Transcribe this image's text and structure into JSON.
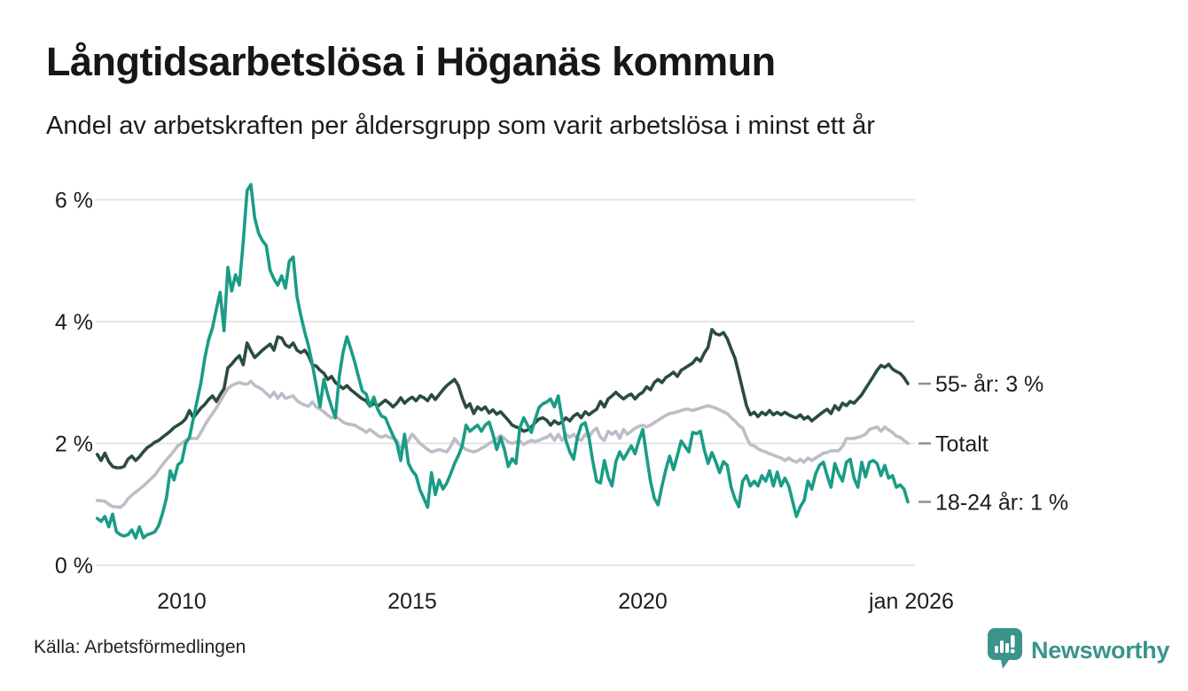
{
  "header": {
    "title": "Långtidsarbetslösa i Höganäs kommun",
    "subtitle": "Andel av arbetskraften per åldersgrupp som varit arbetslösa i minst ett år"
  },
  "footer": {
    "source": "Källa: Arbetsförmedlingen",
    "brand": {
      "name": "Newsworthy",
      "color": "#3a948c",
      "icon": "newsworthy-badge-icon"
    }
  },
  "colors": {
    "grid": "#e4e4e7",
    "axis_text": "#1c1c1c",
    "end_label_text": "#1c1c1c",
    "end_tick": "#8f8f96",
    "background": "#ffffff"
  },
  "chart_data": {
    "type": "line",
    "title": "Långtidsarbetslösa i Höganäs kommun",
    "subtitle": "Andel av arbetskraften per åldersgrupp som varit arbetslösa i minst ett år",
    "x_start": "2008-03",
    "x_end": "2025-10",
    "x_interval": "monthly",
    "x_axis_end_label_value": 2026.04,
    "x_tick_labels": [
      "2010",
      "2015",
      "2020",
      "jan 2026"
    ],
    "x_tick_values": [
      2010,
      2015,
      2020,
      2026.0
    ],
    "y_unit": "%",
    "y_tick_labels": [
      "0 %",
      "2 %",
      "4 %",
      "6 %"
    ],
    "y_tick_values": [
      0,
      2,
      4,
      6
    ],
    "ylim": [
      0,
      6.5
    ],
    "grid": "horizontal",
    "legend_position": "end-of-line-labels-right",
    "series": [
      {
        "id": "totalt",
        "name": "Totalt",
        "end_label": "Totalt",
        "color": "#bdbdc8",
        "values": [
          1.06,
          1.06,
          1.05,
          1.0,
          0.96,
          0.96,
          0.95,
          1.0,
          1.09,
          1.15,
          1.2,
          1.25,
          1.3,
          1.36,
          1.42,
          1.48,
          1.57,
          1.65,
          1.73,
          1.8,
          1.88,
          1.96,
          2.0,
          2.05,
          2.08,
          2.08,
          2.08,
          2.18,
          2.3,
          2.4,
          2.49,
          2.58,
          2.69,
          2.8,
          2.9,
          2.95,
          2.98,
          3.0,
          2.98,
          2.97,
          3.02,
          2.95,
          2.92,
          2.88,
          2.82,
          2.76,
          2.84,
          2.74,
          2.82,
          2.74,
          2.76,
          2.78,
          2.7,
          2.66,
          2.63,
          2.61,
          2.68,
          2.6,
          2.56,
          2.52,
          2.46,
          2.42,
          2.44,
          2.4,
          2.35,
          2.32,
          2.31,
          2.3,
          2.26,
          2.23,
          2.18,
          2.23,
          2.18,
          2.13,
          2.1,
          2.13,
          2.1,
          2.08,
          2.05,
          1.9,
          1.95,
          2.05,
          2.15,
          2.08,
          2.0,
          1.95,
          1.9,
          1.86,
          1.88,
          1.9,
          1.88,
          1.86,
          1.95,
          2.08,
          2.0,
          1.95,
          1.9,
          1.88,
          1.86,
          1.88,
          1.92,
          1.95,
          2.0,
          2.03,
          2.08,
          2.13,
          2.08,
          2.02,
          2.0,
          2.02,
          2.04,
          1.98,
          2.02,
          2.05,
          2.03,
          2.05,
          2.08,
          2.1,
          2.15,
          2.05,
          2.15,
          2.05,
          2.15,
          2.1,
          2.15,
          2.08,
          2.05,
          2.15,
          2.1,
          2.2,
          2.25,
          2.1,
          2.05,
          2.2,
          2.15,
          2.2,
          2.08,
          2.23,
          2.15,
          2.2,
          2.25,
          2.28,
          2.3,
          2.27,
          2.3,
          2.34,
          2.38,
          2.42,
          2.46,
          2.49,
          2.5,
          2.52,
          2.54,
          2.56,
          2.56,
          2.54,
          2.56,
          2.58,
          2.6,
          2.62,
          2.6,
          2.58,
          2.55,
          2.52,
          2.49,
          2.42,
          2.37,
          2.3,
          2.25,
          2.1,
          1.98,
          1.96,
          1.91,
          1.88,
          1.86,
          1.83,
          1.81,
          1.78,
          1.76,
          1.72,
          1.76,
          1.72,
          1.69,
          1.74,
          1.69,
          1.76,
          1.72,
          1.76,
          1.8,
          1.84,
          1.85,
          1.88,
          1.88,
          1.88,
          1.95,
          2.08,
          2.08,
          2.08,
          2.1,
          2.12,
          2.15,
          2.23,
          2.25,
          2.27,
          2.2,
          2.27,
          2.22,
          2.18,
          2.12,
          2.1,
          2.05,
          2.0
        ]
      },
      {
        "id": "55-ar",
        "name": "55- år",
        "end_label": "55- år: 3 %",
        "end_value_pct": 3,
        "color": "#2a4c3e",
        "values": [
          1.82,
          1.72,
          1.84,
          1.7,
          1.62,
          1.6,
          1.6,
          1.62,
          1.74,
          1.79,
          1.72,
          1.78,
          1.86,
          1.93,
          1.97,
          2.02,
          2.05,
          2.1,
          2.15,
          2.2,
          2.26,
          2.3,
          2.34,
          2.4,
          2.54,
          2.42,
          2.5,
          2.58,
          2.64,
          2.72,
          2.78,
          2.69,
          2.8,
          2.9,
          3.24,
          3.3,
          3.38,
          3.44,
          3.29,
          3.65,
          3.52,
          3.41,
          3.47,
          3.53,
          3.58,
          3.63,
          3.53,
          3.75,
          3.73,
          3.62,
          3.58,
          3.65,
          3.53,
          3.49,
          3.53,
          3.44,
          3.29,
          3.27,
          3.2,
          3.15,
          3.05,
          3.1,
          3.0,
          2.95,
          2.9,
          2.95,
          2.88,
          2.83,
          2.78,
          2.73,
          2.7,
          2.61,
          2.66,
          2.61,
          2.66,
          2.71,
          2.66,
          2.6,
          2.66,
          2.75,
          2.66,
          2.72,
          2.76,
          2.7,
          2.78,
          2.75,
          2.7,
          2.8,
          2.72,
          2.8,
          2.88,
          2.95,
          3.0,
          3.05,
          2.95,
          2.75,
          2.59,
          2.65,
          2.49,
          2.6,
          2.55,
          2.6,
          2.5,
          2.55,
          2.48,
          2.52,
          2.45,
          2.38,
          2.3,
          2.27,
          2.25,
          2.2,
          2.22,
          2.27,
          2.34,
          2.4,
          2.42,
          2.38,
          2.3,
          2.37,
          2.32,
          2.35,
          2.42,
          2.37,
          2.45,
          2.49,
          2.42,
          2.52,
          2.47,
          2.52,
          2.56,
          2.69,
          2.6,
          2.73,
          2.78,
          2.84,
          2.78,
          2.73,
          2.78,
          2.81,
          2.73,
          2.8,
          2.84,
          2.93,
          2.88,
          3.0,
          3.05,
          3.0,
          3.08,
          3.12,
          3.17,
          3.1,
          3.2,
          3.24,
          3.28,
          3.32,
          3.4,
          3.35,
          3.48,
          3.58,
          3.87,
          3.8,
          3.78,
          3.82,
          3.72,
          3.55,
          3.4,
          3.15,
          2.88,
          2.62,
          2.47,
          2.51,
          2.44,
          2.51,
          2.47,
          2.54,
          2.47,
          2.51,
          2.47,
          2.51,
          2.47,
          2.44,
          2.42,
          2.47,
          2.4,
          2.44,
          2.37,
          2.42,
          2.47,
          2.52,
          2.56,
          2.49,
          2.62,
          2.55,
          2.66,
          2.62,
          2.69,
          2.66,
          2.73,
          2.8,
          2.9,
          3.0,
          3.1,
          3.2,
          3.28,
          3.25,
          3.3,
          3.22,
          3.18,
          3.15,
          3.08,
          2.98
        ]
      },
      {
        "id": "18-24-ar",
        "name": "18-24 år",
        "end_label": "18-24 år: 1 %",
        "end_value_pct": 1,
        "color": "#1a9c86",
        "values": [
          0.77,
          0.72,
          0.8,
          0.63,
          0.84,
          0.55,
          0.5,
          0.48,
          0.5,
          0.58,
          0.45,
          0.63,
          0.45,
          0.5,
          0.52,
          0.55,
          0.65,
          0.85,
          1.1,
          1.55,
          1.4,
          1.65,
          1.7,
          2.0,
          2.1,
          2.4,
          2.7,
          3.0,
          3.4,
          3.7,
          3.9,
          4.2,
          4.48,
          3.85,
          4.89,
          4.5,
          4.77,
          4.6,
          5.3,
          6.15,
          6.25,
          5.7,
          5.45,
          5.33,
          5.25,
          4.84,
          4.7,
          4.6,
          4.75,
          4.55,
          4.99,
          5.06,
          4.41,
          4.1,
          3.83,
          3.6,
          3.3,
          2.95,
          2.6,
          3.05,
          2.8,
          2.6,
          2.42,
          3.1,
          3.5,
          3.75,
          3.55,
          3.34,
          3.1,
          2.86,
          2.81,
          2.61,
          2.76,
          2.56,
          2.45,
          2.42,
          2.27,
          2.13,
          2.0,
          1.72,
          2.15,
          1.67,
          1.55,
          1.47,
          1.24,
          1.1,
          0.95,
          1.52,
          1.16,
          1.4,
          1.25,
          1.35,
          1.5,
          1.67,
          1.8,
          1.96,
          2.3,
          2.2,
          2.25,
          2.3,
          2.2,
          2.3,
          2.35,
          2.15,
          1.9,
          2.1,
          1.9,
          1.62,
          1.75,
          1.67,
          2.25,
          2.42,
          2.3,
          2.18,
          2.4,
          2.59,
          2.65,
          2.68,
          2.73,
          2.6,
          2.78,
          2.4,
          2.05,
          1.86,
          1.74,
          2.1,
          2.3,
          2.34,
          2.1,
          1.7,
          1.38,
          1.35,
          1.72,
          1.45,
          1.3,
          1.7,
          1.86,
          1.74,
          1.85,
          1.96,
          1.83,
          2.05,
          2.23,
          1.8,
          1.38,
          1.1,
          0.99,
          1.3,
          1.57,
          1.79,
          1.57,
          1.8,
          2.04,
          1.95,
          1.86,
          2.18,
          2.16,
          2.2,
          1.9,
          1.67,
          1.85,
          1.7,
          1.52,
          1.7,
          1.64,
          1.28,
          1.09,
          0.96,
          1.38,
          1.47,
          1.3,
          1.38,
          1.3,
          1.47,
          1.38,
          1.55,
          1.3,
          1.53,
          1.3,
          1.43,
          1.3,
          1.05,
          0.8,
          0.96,
          1.06,
          1.38,
          1.25,
          1.5,
          1.64,
          1.69,
          1.47,
          1.28,
          1.67,
          1.5,
          1.38,
          1.69,
          1.74,
          1.43,
          1.28,
          1.69,
          1.45,
          1.69,
          1.72,
          1.67,
          1.47,
          1.64,
          1.43,
          1.47,
          1.28,
          1.32,
          1.25,
          1.04
        ]
      }
    ]
  }
}
